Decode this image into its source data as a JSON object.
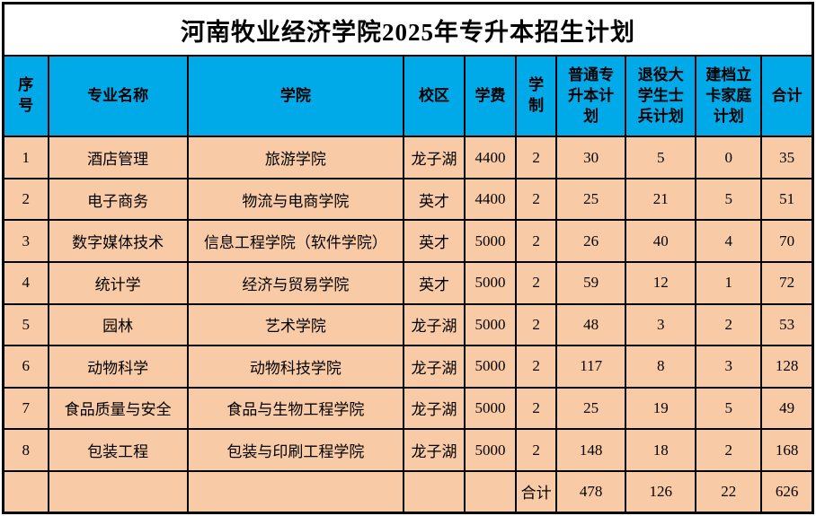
{
  "title": "河南牧业经济学院2025年专升本招生计划",
  "colors": {
    "header_bg": "#00AAE8",
    "row_bg": "#F8CBA6",
    "border": "#000000",
    "title_text": "#000000"
  },
  "table": {
    "columns": [
      {
        "key": "no",
        "label": "序号"
      },
      {
        "key": "major",
        "label": "专业名称"
      },
      {
        "key": "college",
        "label": "学院"
      },
      {
        "key": "campus",
        "label": "校区"
      },
      {
        "key": "tuition",
        "label": "学费"
      },
      {
        "key": "duration",
        "label": "学制"
      },
      {
        "key": "regular",
        "label": "普通专升本计划"
      },
      {
        "key": "veteran",
        "label": "退役大学生士兵计划"
      },
      {
        "key": "poverty",
        "label": "建档立卡家庭计划"
      },
      {
        "key": "total",
        "label": "合计"
      }
    ],
    "rows": [
      [
        "1",
        "酒店管理",
        "旅游学院",
        "龙子湖",
        "4400",
        "2",
        "30",
        "5",
        "0",
        "35"
      ],
      [
        "2",
        "电子商务",
        "物流与电商学院",
        "英才",
        "4400",
        "2",
        "25",
        "21",
        "5",
        "51"
      ],
      [
        "3",
        "数字媒体技术",
        "信息工程学院（软件学院）",
        "英才",
        "5000",
        "2",
        "26",
        "40",
        "4",
        "70"
      ],
      [
        "4",
        "统计学",
        "经济与贸易学院",
        "英才",
        "5000",
        "2",
        "59",
        "12",
        "1",
        "72"
      ],
      [
        "5",
        "园林",
        "艺术学院",
        "龙子湖",
        "5000",
        "2",
        "48",
        "3",
        "2",
        "53"
      ],
      [
        "6",
        "动物科学",
        "动物科技学院",
        "龙子湖",
        "5000",
        "2",
        "117",
        "8",
        "3",
        "128"
      ],
      [
        "7",
        "食品质量与安全",
        "食品与生物工程学院",
        "龙子湖",
        "5000",
        "2",
        "25",
        "19",
        "5",
        "49"
      ],
      [
        "8",
        "包装工程",
        "包装与印刷工程学院",
        "龙子湖",
        "5000",
        "2",
        "148",
        "18",
        "2",
        "168"
      ]
    ],
    "footer": [
      "",
      "",
      "",
      "",
      "",
      "合计",
      "478",
      "126",
      "22",
      "626"
    ]
  }
}
